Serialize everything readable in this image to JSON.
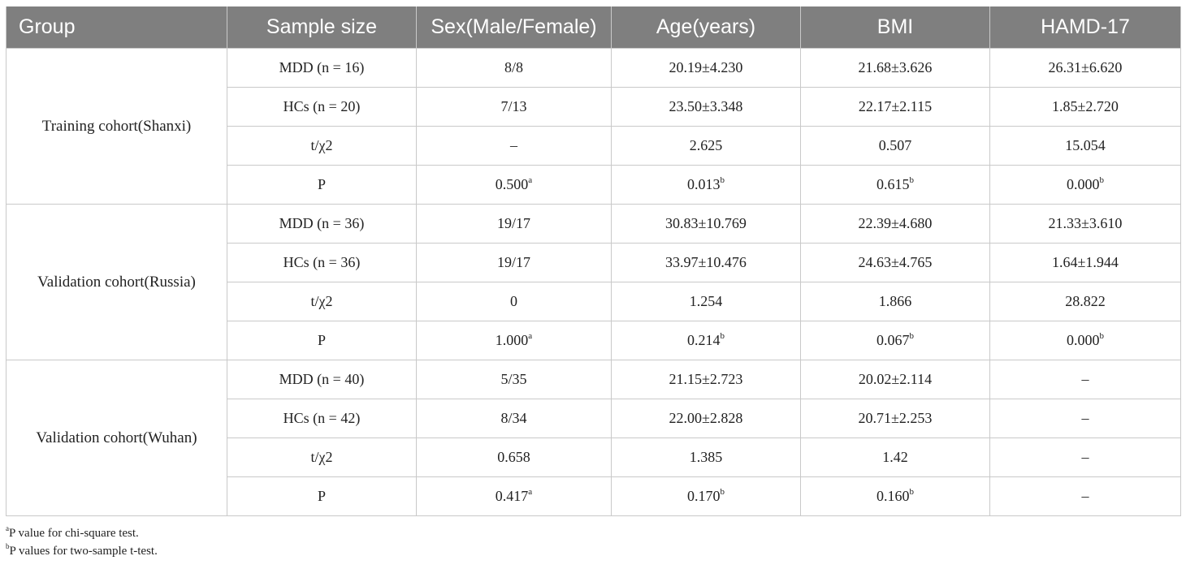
{
  "headers": [
    "Group",
    "Sample size",
    "Sex(Male/Female)",
    "Age(years)",
    "BMI",
    "HAMD-17"
  ],
  "cohorts": [
    {
      "name": "Training cohort(Shanxi)",
      "rows": [
        {
          "label": "MDD (n = 16)",
          "cells": [
            {
              "v": "8/8",
              "s": ""
            },
            {
              "v": "20.19±4.230",
              "s": ""
            },
            {
              "v": "21.68±3.626",
              "s": ""
            },
            {
              "v": "26.31±6.620",
              "s": ""
            }
          ]
        },
        {
          "label": "HCs (n = 20)",
          "cells": [
            {
              "v": "7/13",
              "s": ""
            },
            {
              "v": "23.50±3.348",
              "s": ""
            },
            {
              "v": "22.17±2.115",
              "s": ""
            },
            {
              "v": "1.85±2.720",
              "s": ""
            }
          ]
        },
        {
          "label": "t/χ2",
          "cells": [
            {
              "v": "–",
              "s": ""
            },
            {
              "v": "2.625",
              "s": ""
            },
            {
              "v": "0.507",
              "s": ""
            },
            {
              "v": "15.054",
              "s": ""
            }
          ]
        },
        {
          "label": "P",
          "cells": [
            {
              "v": "0.500",
              "s": "a"
            },
            {
              "v": "0.013",
              "s": "b"
            },
            {
              "v": "0.615",
              "s": "b"
            },
            {
              "v": "0.000",
              "s": "b"
            }
          ]
        }
      ]
    },
    {
      "name": "Validation cohort(Russia)",
      "rows": [
        {
          "label": "MDD (n = 36)",
          "cells": [
            {
              "v": "19/17",
              "s": ""
            },
            {
              "v": "30.83±10.769",
              "s": ""
            },
            {
              "v": "22.39±4.680",
              "s": ""
            },
            {
              "v": "21.33±3.610",
              "s": ""
            }
          ]
        },
        {
          "label": "HCs (n = 36)",
          "cells": [
            {
              "v": "19/17",
              "s": ""
            },
            {
              "v": "33.97±10.476",
              "s": ""
            },
            {
              "v": "24.63±4.765",
              "s": ""
            },
            {
              "v": "1.64±1.944",
              "s": ""
            }
          ]
        },
        {
          "label": "t/χ2",
          "cells": [
            {
              "v": "0",
              "s": ""
            },
            {
              "v": "1.254",
              "s": ""
            },
            {
              "v": "1.866",
              "s": ""
            },
            {
              "v": "28.822",
              "s": ""
            }
          ]
        },
        {
          "label": "P",
          "cells": [
            {
              "v": "1.000",
              "s": "a"
            },
            {
              "v": "0.214",
              "s": "b"
            },
            {
              "v": "0.067",
              "s": "b"
            },
            {
              "v": "0.000",
              "s": "b"
            }
          ]
        }
      ]
    },
    {
      "name": "Validation cohort(Wuhan)",
      "rows": [
        {
          "label": "MDD (n = 40)",
          "cells": [
            {
              "v": "5/35",
              "s": ""
            },
            {
              "v": "21.15±2.723",
              "s": ""
            },
            {
              "v": "20.02±2.114",
              "s": ""
            },
            {
              "v": "–",
              "s": ""
            }
          ]
        },
        {
          "label": "HCs (n = 42)",
          "cells": [
            {
              "v": "8/34",
              "s": ""
            },
            {
              "v": "22.00±2.828",
              "s": ""
            },
            {
              "v": "20.71±2.253",
              "s": ""
            },
            {
              "v": "–",
              "s": ""
            }
          ]
        },
        {
          "label": "t/χ2",
          "cells": [
            {
              "v": "0.658",
              "s": ""
            },
            {
              "v": "1.385",
              "s": ""
            },
            {
              "v": "1.42",
              "s": ""
            },
            {
              "v": "–",
              "s": ""
            }
          ]
        },
        {
          "label": "P",
          "cells": [
            {
              "v": "0.417",
              "s": "a"
            },
            {
              "v": "0.170",
              "s": "b"
            },
            {
              "v": "0.160",
              "s": "b"
            },
            {
              "v": "–",
              "s": ""
            }
          ]
        }
      ]
    }
  ],
  "footnotes": [
    {
      "mark": "a",
      "text": "P value for chi-square test."
    },
    {
      "mark": "b",
      "text": "P values for two-sample t-test."
    }
  ]
}
